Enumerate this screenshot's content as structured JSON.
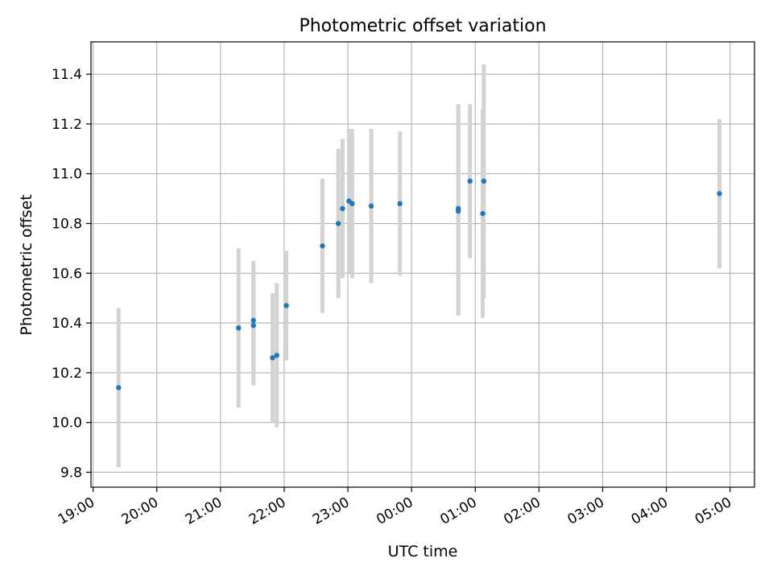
{
  "chart_data": {
    "type": "scatter",
    "title": "Photometric offset variation",
    "xlabel": "UTC time",
    "ylabel": "Photometric offset",
    "x_axis_type": "time",
    "xlim": [
      "18:58",
      "05:23"
    ],
    "ylim": [
      9.74,
      11.53
    ],
    "xticks": [
      "19:00",
      "20:00",
      "21:00",
      "22:00",
      "23:00",
      "00:00",
      "01:00",
      "02:00",
      "03:00",
      "04:00",
      "05:00"
    ],
    "yticks": [
      9.8,
      10.0,
      10.2,
      10.4,
      10.6,
      10.8,
      11.0,
      11.2,
      11.4
    ],
    "ytick_labels": [
      "9.8",
      "10.0",
      "10.2",
      "10.4",
      "10.6",
      "10.8",
      "11.0",
      "11.2",
      "11.4"
    ],
    "grid": true,
    "legend": "none",
    "series": [
      {
        "marker_color": "#1f77b4",
        "errorbar_color": "#d3d3d3",
        "points": [
          {
            "x": "19:24",
            "y": 10.14,
            "yerr": 0.32
          },
          {
            "x": "21:17",
            "y": 10.38,
            "yerr": 0.32
          },
          {
            "x": "21:31",
            "y": 10.41,
            "yerr": 0.24
          },
          {
            "x": "21:31",
            "y": 10.39,
            "yerr": 0.24
          },
          {
            "x": "21:49",
            "y": 10.26,
            "yerr": 0.26
          },
          {
            "x": "21:53",
            "y": 10.27,
            "yerr": 0.29
          },
          {
            "x": "22:02",
            "y": 10.47,
            "yerr": 0.22
          },
          {
            "x": "22:36",
            "y": 10.71,
            "yerr": 0.27
          },
          {
            "x": "22:51",
            "y": 10.8,
            "yerr": 0.3
          },
          {
            "x": "22:55",
            "y": 10.86,
            "yerr": 0.28
          },
          {
            "x": "23:01",
            "y": 10.89,
            "yerr": 0.29
          },
          {
            "x": "23:04",
            "y": 10.88,
            "yerr": 0.3
          },
          {
            "x": "23:22",
            "y": 10.87,
            "yerr": 0.31
          },
          {
            "x": "23:49",
            "y": 10.88,
            "yerr": 0.29
          },
          {
            "x": "00:44",
            "y": 10.86,
            "yerr": 0.42
          },
          {
            "x": "00:44",
            "y": 10.85,
            "yerr": 0.42
          },
          {
            "x": "00:55",
            "y": 10.97,
            "yerr": 0.31
          },
          {
            "x": "01:07",
            "y": 10.84,
            "yerr": 0.42
          },
          {
            "x": "01:08",
            "y": 10.97,
            "yerr": 0.47
          },
          {
            "x": "04:50",
            "y": 10.92,
            "yerr": 0.3
          }
        ]
      }
    ]
  }
}
